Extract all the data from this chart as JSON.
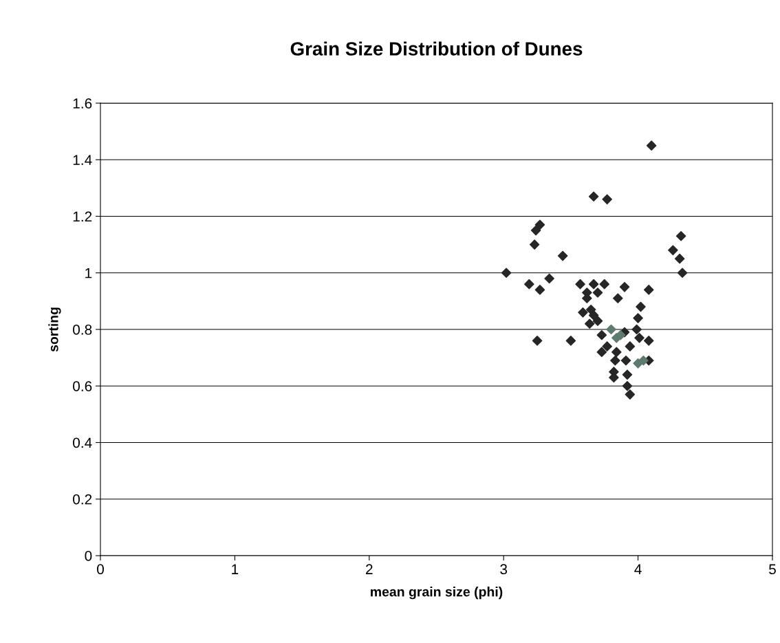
{
  "chart_data": {
    "type": "scatter",
    "title": "Grain Size Distribution of Dunes",
    "xlabel": "mean grain size (phi)",
    "ylabel": "sorting",
    "xlim": [
      0,
      5
    ],
    "xticks": [
      0,
      1,
      2,
      3,
      4,
      5
    ],
    "ylim": [
      0,
      1.6
    ],
    "yticks": [
      0,
      0.2,
      0.4,
      0.6,
      0.8,
      1,
      1.2,
      1.4,
      1.6
    ],
    "grid": "y",
    "marker": "diamond",
    "legend": false,
    "series": [
      {
        "color": "#262626",
        "x": [
          3.02,
          3.19,
          3.27,
          3.34,
          3.57,
          3.67,
          3.75,
          3.9,
          4.08,
          3.62,
          3.7,
          3.62,
          3.85,
          4.02,
          4.0,
          3.59,
          3.65,
          3.67,
          3.7,
          3.64,
          3.25,
          3.5,
          3.73,
          3.9,
          3.77,
          3.94,
          3.99,
          4.01,
          4.08,
          3.73,
          3.84,
          3.83,
          3.91,
          4.08,
          3.82,
          3.82,
          3.92,
          3.92,
          3.94,
          3.67,
          3.77,
          3.27,
          3.24,
          3.23,
          3.44,
          4.1,
          4.26,
          4.32,
          4.31,
          4.33
        ],
        "values": [
          1.0,
          0.96,
          0.94,
          0.98,
          0.96,
          0.96,
          0.96,
          0.95,
          0.94,
          0.93,
          0.93,
          0.91,
          0.91,
          0.88,
          0.84,
          0.86,
          0.87,
          0.85,
          0.83,
          0.82,
          0.76,
          0.76,
          0.78,
          0.79,
          0.74,
          0.74,
          0.8,
          0.77,
          0.76,
          0.72,
          0.72,
          0.69,
          0.69,
          0.69,
          0.65,
          0.63,
          0.64,
          0.6,
          0.57,
          1.27,
          1.26,
          1.17,
          1.15,
          1.1,
          1.06,
          1.45,
          1.08,
          1.13,
          1.05,
          1.0
        ]
      },
      {
        "color": "#5f7a6e",
        "x": [
          3.8,
          3.84,
          3.87,
          4.0,
          4.04
        ],
        "values": [
          0.8,
          0.77,
          0.78,
          0.68,
          0.69
        ]
      }
    ]
  }
}
